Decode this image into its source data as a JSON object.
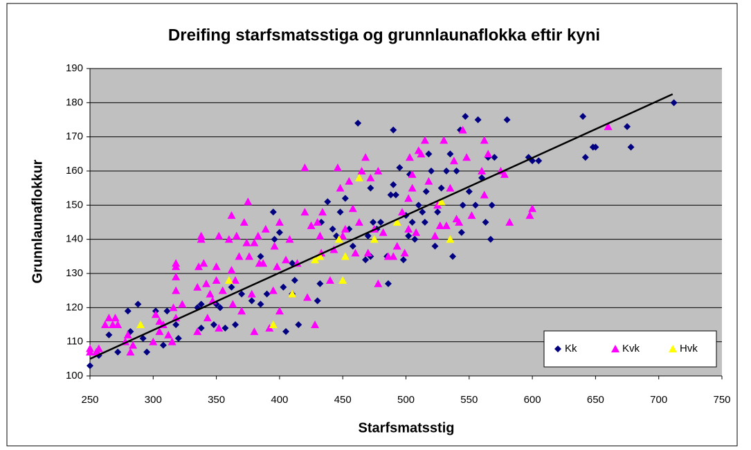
{
  "chart_data": {
    "type": "scatter",
    "title": "Dreifing starfsmatsstiga og grunnlaunaflokka eftir kyni",
    "xlabel": "Starfsmatsstig",
    "ylabel": "Grunnlaunaflokkur",
    "xlim": [
      250,
      750
    ],
    "ylim": [
      100,
      190
    ],
    "xticks": [
      250,
      300,
      350,
      400,
      450,
      500,
      550,
      600,
      650,
      700,
      750
    ],
    "yticks": [
      100,
      110,
      120,
      130,
      140,
      150,
      160,
      170,
      180,
      190
    ],
    "grid": true,
    "legend": "lower right",
    "background": "#c0c0c0",
    "series": [
      {
        "name": "Kk",
        "color": "#000080",
        "marker": "diamond",
        "x": [
          250,
          257,
          265,
          272,
          280,
          282,
          288,
          292,
          295,
          302,
          308,
          311,
          318,
          320,
          335,
          338,
          338,
          348,
          350,
          353,
          357,
          362,
          365,
          370,
          378,
          385,
          385,
          390,
          395,
          396,
          400,
          403,
          405,
          410,
          410,
          412,
          415,
          430,
          432,
          433,
          438,
          442,
          445,
          448,
          452,
          455,
          458,
          462,
          468,
          470,
          472,
          472,
          474,
          477,
          480,
          485,
          486,
          488,
          490,
          490,
          492,
          495,
          498,
          500,
          502,
          503,
          505,
          507,
          510,
          513,
          515,
          516,
          518,
          520,
          523,
          525,
          528,
          532,
          535,
          537,
          540,
          543,
          544,
          545,
          547,
          550,
          555,
          557,
          560,
          563,
          565,
          567,
          568,
          570,
          580,
          597,
          600,
          605,
          640,
          642,
          648,
          650,
          675,
          678,
          712
        ],
        "y": [
          103,
          106,
          112,
          107,
          119,
          113,
          121,
          111,
          107,
          119,
          109,
          119,
          115,
          111,
          120,
          114,
          121,
          115,
          121,
          120,
          114,
          126,
          115,
          124,
          122,
          135,
          121,
          124,
          148,
          140,
          142,
          126,
          113,
          124,
          133,
          128,
          115,
          122,
          127,
          145,
          151,
          143,
          141,
          148,
          152,
          143,
          138,
          174,
          134,
          141,
          135,
          155,
          145,
          143,
          145,
          135,
          127,
          153,
          172,
          156,
          153,
          161,
          134,
          147,
          141,
          159,
          145,
          140,
          150,
          148,
          145,
          154,
          165,
          160,
          138,
          148,
          155,
          160,
          165,
          135,
          160,
          172,
          142,
          150,
          176,
          154,
          150,
          175,
          158,
          145,
          164,
          140,
          150,
          164,
          175,
          164,
          163,
          163,
          176,
          164,
          167,
          167,
          173,
          167,
          180
        ]
      },
      {
        "name": "Kvk",
        "color": "#ff00ff",
        "marker": "triangle",
        "x": [
          250,
          250,
          255,
          257,
          262,
          265,
          268,
          270,
          272,
          278,
          280,
          282,
          284,
          300,
          302,
          305,
          305,
          308,
          312,
          315,
          316,
          318,
          318,
          318,
          318,
          318,
          323,
          335,
          335,
          336,
          338,
          338,
          340,
          342,
          343,
          345,
          347,
          350,
          350,
          352,
          352,
          355,
          360,
          362,
          362,
          363,
          365,
          366,
          368,
          370,
          372,
          374,
          375,
          376,
          378,
          380,
          380,
          383,
          384,
          387,
          389,
          392,
          395,
          396,
          398,
          400,
          400,
          405,
          408,
          410,
          414,
          420,
          420,
          422,
          425,
          428,
          430,
          432,
          433,
          434,
          440,
          443,
          446,
          448,
          450,
          452,
          455,
          458,
          460,
          463,
          465,
          468,
          470,
          472,
          475,
          478,
          478,
          482,
          486,
          490,
          493,
          497,
          499,
          502,
          502,
          503,
          505,
          505,
          508,
          510,
          512,
          515,
          518,
          523,
          525,
          527,
          530,
          532,
          535,
          538,
          540,
          542,
          545,
          548,
          552,
          560,
          562,
          562,
          565,
          575,
          578,
          582,
          598,
          600,
          660
        ],
        "y": [
          107,
          108,
          107,
          108,
          115,
          117,
          115,
          117,
          115,
          110,
          112,
          107,
          109,
          110,
          118,
          116,
          113,
          115,
          112,
          110,
          120,
          117,
          125,
          129,
          132,
          133,
          121,
          113,
          126,
          132,
          141,
          140,
          133,
          127,
          117,
          124,
          122,
          128,
          132,
          141,
          114,
          125,
          140,
          147,
          131,
          121,
          128,
          141,
          135,
          119,
          145,
          139,
          151,
          135,
          124,
          139,
          113,
          141,
          133,
          133,
          143,
          114,
          125,
          138,
          132,
          145,
          119,
          134,
          140,
          124,
          133,
          148,
          161,
          123,
          144,
          115,
          145,
          141,
          136,
          148,
          128,
          137,
          161,
          155,
          141,
          143,
          157,
          149,
          136,
          145,
          160,
          164,
          136,
          158,
          143,
          127,
          160,
          142,
          135,
          135,
          138,
          148,
          136,
          143,
          152,
          164,
          155,
          159,
          142,
          166,
          165,
          169,
          157,
          141,
          150,
          144,
          169,
          144,
          155,
          163,
          146,
          145,
          172,
          164,
          147,
          160,
          169,
          153,
          165,
          160,
          159,
          145,
          147,
          149,
          173
        ]
      },
      {
        "name": "Hvk",
        "color": "#ffff00",
        "marker": "triangle",
        "x": [
          290,
          360,
          395,
          410,
          428,
          432,
          447,
          450,
          452,
          463,
          475,
          493,
          528,
          535
        ],
        "y": [
          115,
          128,
          115,
          124,
          134,
          135,
          140,
          128,
          135,
          158,
          140,
          145,
          151,
          140
        ]
      }
    ],
    "trendline": {
      "color": "#000000",
      "x": [
        250,
        711
      ],
      "y": [
        105,
        182.5
      ]
    }
  }
}
